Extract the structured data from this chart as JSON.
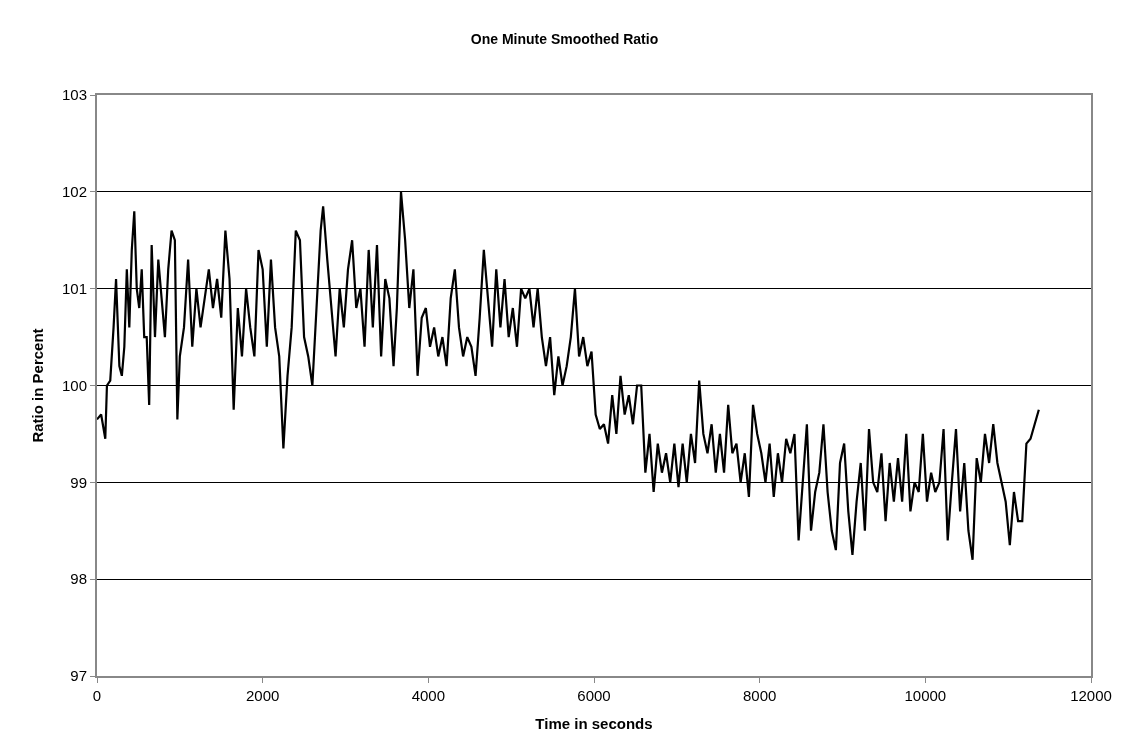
{
  "chart_data": {
    "type": "line",
    "title": "One Minute Smoothed Ratio",
    "xlabel": "Time in seconds",
    "ylabel": "Ratio in Percent",
    "x": [
      0,
      50,
      100,
      120,
      160,
      200,
      230,
      270,
      300,
      330,
      360,
      390,
      420,
      450,
      480,
      510,
      540,
      570,
      600,
      630,
      660,
      700,
      740,
      780,
      820,
      860,
      900,
      940,
      970,
      1000,
      1050,
      1100,
      1150,
      1200,
      1250,
      1300,
      1350,
      1400,
      1450,
      1500,
      1550,
      1600,
      1650,
      1700,
      1750,
      1800,
      1850,
      1900,
      1950,
      2000,
      2050,
      2100,
      2150,
      2200,
      2250,
      2300,
      2350,
      2400,
      2450,
      2500,
      2550,
      2600,
      2650,
      2700,
      2730,
      2780,
      2830,
      2880,
      2930,
      2980,
      3030,
      3080,
      3130,
      3180,
      3230,
      3280,
      3330,
      3380,
      3430,
      3480,
      3530,
      3580,
      3620,
      3670,
      3720,
      3770,
      3820,
      3870,
      3920,
      3970,
      4020,
      4070,
      4120,
      4170,
      4220,
      4270,
      4320,
      4370,
      4420,
      4470,
      4520,
      4570,
      4620,
      4670,
      4720,
      4770,
      4820,
      4870,
      4920,
      4970,
      5020,
      5070,
      5120,
      5170,
      5220,
      5270,
      5320,
      5370,
      5420,
      5470,
      5520,
      5570,
      5620,
      5670,
      5720,
      5770,
      5820,
      5870,
      5920,
      5970,
      6020,
      6070,
      6120,
      6170,
      6220,
      6270,
      6320,
      6370,
      6420,
      6470,
      6520,
      6570,
      6620,
      6670,
      6720,
      6770,
      6820,
      6870,
      6920,
      6970,
      7020,
      7070,
      7120,
      7170,
      7220,
      7270,
      7320,
      7370,
      7420,
      7470,
      7520,
      7570,
      7620,
      7670,
      7720,
      7770,
      7820,
      7870,
      7920,
      7970,
      8020,
      8070,
      8120,
      8170,
      8220,
      8270,
      8320,
      8370,
      8420,
      8470,
      8520,
      8570,
      8620,
      8670,
      8720,
      8770,
      8820,
      8870,
      8920,
      8970,
      9020,
      9070,
      9120,
      9170,
      9220,
      9270,
      9320,
      9370,
      9420,
      9470,
      9520,
      9570,
      9620,
      9670,
      9720,
      9770,
      9820,
      9870,
      9920,
      9970,
      10020,
      10070,
      10120,
      10170,
      10220,
      10270,
      10320,
      10370,
      10420,
      10470,
      10520,
      10570,
      10620,
      10670,
      10720,
      10770,
      10820,
      10870,
      10920,
      10970,
      11020,
      11070,
      11120,
      11170,
      11220,
      11270,
      11320,
      11370
    ],
    "series": [
      {
        "color": "#000000",
        "values": [
          99.65,
          99.7,
          99.45,
          100.0,
          100.05,
          100.6,
          101.1,
          100.2,
          100.1,
          100.4,
          101.2,
          100.6,
          101.4,
          101.8,
          101.0,
          100.8,
          101.2,
          100.5,
          100.5,
          99.8,
          101.45,
          100.5,
          101.3,
          100.9,
          100.5,
          101.2,
          101.6,
          101.5,
          99.65,
          100.3,
          100.6,
          101.3,
          100.4,
          101.0,
          100.6,
          100.9,
          101.2,
          100.8,
          101.1,
          100.7,
          101.6,
          101.1,
          99.75,
          100.8,
          100.3,
          101.0,
          100.6,
          100.3,
          101.4,
          101.2,
          100.4,
          101.3,
          100.6,
          100.3,
          99.35,
          100.1,
          100.6,
          101.6,
          101.5,
          100.5,
          100.3,
          100.0,
          100.8,
          101.6,
          101.85,
          101.3,
          100.8,
          100.3,
          101.0,
          100.6,
          101.2,
          101.5,
          100.8,
          101.0,
          100.4,
          101.4,
          100.6,
          101.45,
          100.3,
          101.1,
          100.9,
          100.2,
          100.8,
          102.0,
          101.5,
          100.8,
          101.2,
          100.1,
          100.7,
          100.8,
          100.4,
          100.6,
          100.3,
          100.5,
          100.2,
          100.9,
          101.2,
          100.6,
          100.3,
          100.5,
          100.4,
          100.1,
          100.7,
          101.4,
          100.9,
          100.4,
          101.2,
          100.6,
          101.1,
          100.5,
          100.8,
          100.4,
          101.0,
          100.9,
          101.0,
          100.6,
          101.0,
          100.5,
          100.2,
          100.5,
          99.9,
          100.3,
          100.0,
          100.2,
          100.5,
          101.0,
          100.3,
          100.5,
          100.2,
          100.35,
          99.7,
          99.55,
          99.6,
          99.4,
          99.9,
          99.5,
          100.1,
          99.7,
          99.9,
          99.6,
          100.0,
          100.0,
          99.1,
          99.5,
          98.9,
          99.4,
          99.1,
          99.3,
          99.0,
          99.4,
          98.95,
          99.4,
          99.0,
          99.5,
          99.2,
          100.05,
          99.5,
          99.3,
          99.6,
          99.1,
          99.5,
          99.1,
          99.8,
          99.3,
          99.4,
          99.0,
          99.3,
          98.85,
          99.8,
          99.5,
          99.3,
          99.0,
          99.4,
          98.85,
          99.3,
          99.0,
          99.45,
          99.3,
          99.5,
          98.4,
          99.0,
          99.6,
          98.5,
          98.9,
          99.1,
          99.6,
          98.9,
          98.5,
          98.3,
          99.2,
          99.4,
          98.7,
          98.25,
          98.8,
          99.2,
          98.5,
          99.55,
          99.0,
          98.9,
          99.3,
          98.6,
          99.2,
          98.8,
          99.25,
          98.8,
          99.5,
          98.7,
          99.0,
          98.9,
          99.5,
          98.8,
          99.1,
          98.9,
          99.0,
          99.55,
          98.4,
          99.0,
          99.55,
          98.7,
          99.2,
          98.5,
          98.2,
          99.25,
          99.0,
          99.5,
          99.2,
          99.6,
          99.2,
          99.0,
          98.8,
          98.35,
          98.9,
          98.6,
          98.6,
          99.4,
          99.45,
          99.6,
          99.75
        ]
      }
    ],
    "xlim": [
      0,
      12000
    ],
    "xticks": [
      0,
      2000,
      4000,
      6000,
      8000,
      10000,
      12000
    ],
    "ylim": [
      97,
      103
    ],
    "yticks": [
      97,
      98,
      99,
      100,
      101,
      102,
      103
    ],
    "grid": "y",
    "marker": "none",
    "line_style": "solid"
  }
}
